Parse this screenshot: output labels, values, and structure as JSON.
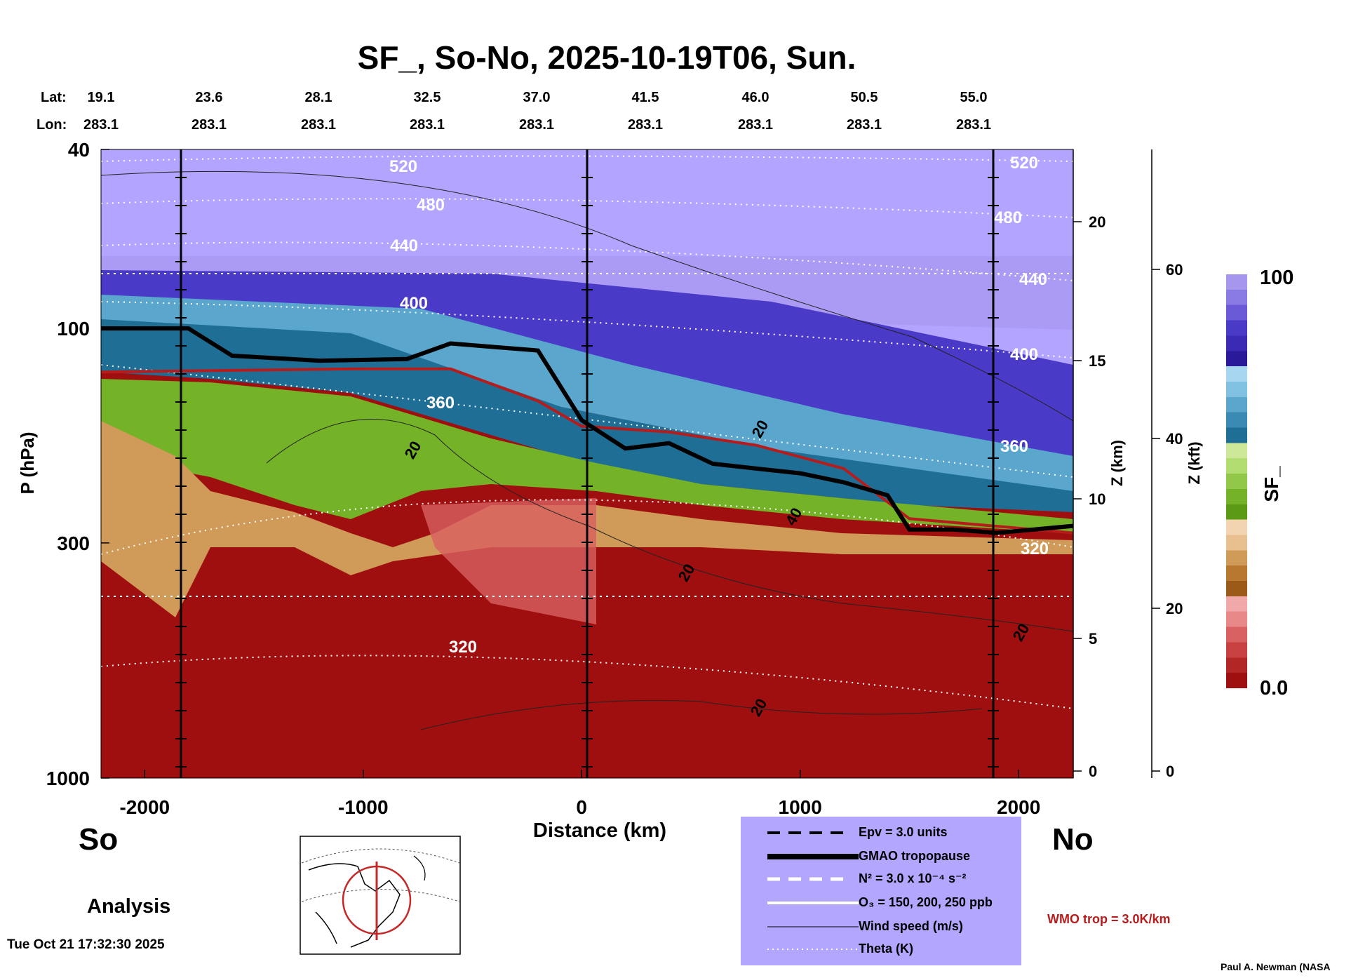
{
  "title": "SF_, So-No, 2025-10-19T06, Sun.",
  "lat_label": "Lat:",
  "lon_label": "Lon:",
  "lat_values": [
    "19.1",
    "23.6",
    "28.1",
    "32.5",
    "37.0",
    "41.5",
    "46.0",
    "50.5",
    "55.0"
  ],
  "lon_values": [
    "283.1",
    "283.1",
    "283.1",
    "283.1",
    "283.1",
    "283.1",
    "283.1",
    "283.1",
    "283.1"
  ],
  "x_axis": {
    "label": "Distance (km)",
    "ticks": [
      "-2000",
      "-1000",
      "0",
      "1000",
      "2000"
    ],
    "tick_values": [
      -2000,
      -1000,
      0,
      1000,
      2000
    ],
    "range": [
      -2200,
      2250
    ]
  },
  "y_axis": {
    "label": "P (hPa)",
    "ticks": [
      "40",
      "100",
      "300",
      "1000"
    ],
    "tick_values": [
      40,
      100,
      300,
      1000
    ],
    "scale": "log",
    "range": [
      40,
      1000
    ]
  },
  "z_km_axis": {
    "label": "Z (km)",
    "ticks": [
      "0",
      "5",
      "10",
      "15",
      "20"
    ]
  },
  "z_kft_axis": {
    "label": "Z (kft)",
    "ticks": [
      "0",
      "20",
      "40",
      "60"
    ]
  },
  "colorbar": {
    "label": "SF_",
    "max_label": "100",
    "min_label": "0.0",
    "colors": [
      "#a00f0f",
      "#b32626",
      "#c84040",
      "#d86060",
      "#e88888",
      "#f0a8a8",
      "#9c5a18",
      "#b87830",
      "#d09a58",
      "#e8c090",
      "#f2d4b0",
      "#5a9a14",
      "#74b228",
      "#92c84a",
      "#b0dc70",
      "#cce898",
      "#1e6e96",
      "#3a8ab4",
      "#5aa6cc",
      "#80c0e0",
      "#a6d6f0",
      "#2a1a9a",
      "#3a2ab4",
      "#4a3ac8",
      "#6a5ad8",
      "#8a7ae4",
      "#a696ec"
    ]
  },
  "theta_labels": [
    "520",
    "480",
    "440",
    "400",
    "360",
    "320",
    "520",
    "480",
    "440",
    "400",
    "360",
    "320"
  ],
  "windspeed_labels": [
    "20",
    "20",
    "20",
    "40",
    "20",
    "20"
  ],
  "regions": {
    "left": "So",
    "right": "No",
    "mode": "Analysis"
  },
  "timestamp": "Tue Oct 21 17:32:30 2025",
  "credit": "Paul A. Newman (NASA",
  "legend": {
    "items": [
      {
        "text": "Epv = 3.0 units",
        "style": "dashed-black"
      },
      {
        "text": "GMAO tropopause",
        "style": "thick-black"
      },
      {
        "text": "N² = 3.0 x 10⁻⁴ s⁻²",
        "style": "dashed-white"
      },
      {
        "text": "O₃ = 150, 200, 250 ppb",
        "style": "white"
      },
      {
        "text": "Wind speed (m/s)",
        "style": "thin-black"
      },
      {
        "text": "Theta (K)",
        "style": "dotted-white"
      }
    ],
    "wmo": "WMO trop = 3.0K/km"
  },
  "colors": {
    "legend_bg": "#b3a6ff",
    "wmo": "#b71c1c",
    "map_ring": "#c62828"
  },
  "chart_data": {
    "type": "heatmap",
    "title": "SF_, So-No, 2025-10-19T06, Sun.",
    "xlabel": "Distance (km)",
    "ylabel": "P (hPa)",
    "xlim": [
      -2200,
      2250
    ],
    "ylim": [
      1000,
      40
    ],
    "y_scale": "log",
    "value_range": [
      0.0,
      100
    ],
    "gmao_tropopause_hPa": {
      "x": [
        -2200,
        -1800,
        -1600,
        -1200,
        -800,
        -600,
        -400,
        -200,
        0,
        200,
        400,
        600,
        800,
        1000,
        1200,
        1400,
        1500,
        1700,
        1900,
        2250
      ],
      "p": [
        100,
        100,
        115,
        118,
        117,
        108,
        110,
        112,
        160,
        185,
        180,
        200,
        205,
        210,
        220,
        235,
        280,
        280,
        285,
        275
      ]
    },
    "wmo_tropopause_hPa": {
      "x": [
        -2200,
        -1600,
        -1000,
        -600,
        -200,
        0,
        400,
        800,
        1200,
        1500,
        2250
      ],
      "p": [
        125,
        124,
        123,
        123,
        145,
        165,
        170,
        182,
        205,
        265,
        285
      ]
    },
    "theta_K": [
      520,
      480,
      440,
      400,
      360,
      320
    ]
  }
}
